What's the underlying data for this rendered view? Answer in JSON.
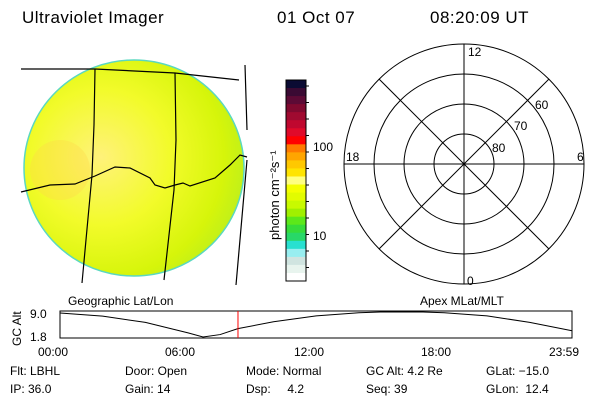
{
  "header": {
    "instrument": "Ultraviolet Imager",
    "date": "01 Oct 07",
    "time": "08:20:09 UT"
  },
  "image_panel": {
    "label": "Geographic Lat/Lon"
  },
  "colorbar": {
    "label": "photon cm⁻²s⁻¹",
    "tick_labels": [
      "100",
      "10"
    ],
    "colors": [
      "#0b0b33",
      "#3a0a33",
      "#5c0a35",
      "#80092f",
      "#a00a30",
      "#c0082f",
      "#e00a2a",
      "#ff0000",
      "#ff7a00",
      "#ffa500",
      "#ffc800",
      "#ffe400",
      "#ffff80",
      "#f4ff00",
      "#e2fc00",
      "#c8fa00",
      "#a0f000",
      "#5ce81a",
      "#36dc3a",
      "#28d868",
      "#28e0d0",
      "#98eef0",
      "#d0e4e0",
      "#e8f4ee",
      "#ffffff"
    ]
  },
  "polar_panel": {
    "label": "Apex MLat/MLT",
    "mlt_labels": [
      "12",
      "6",
      "0",
      "18"
    ],
    "mlat_labels": [
      "60",
      "70",
      "80"
    ]
  },
  "chart_data": {
    "type": "line",
    "ylabel": "GC Alt",
    "y_tick_labels": [
      "9.0",
      "1.8"
    ],
    "ylim": [
      1.8,
      9.0
    ],
    "x_tick_labels": [
      "00:00",
      "06:00",
      "12:00",
      "18:00",
      "23:59"
    ],
    "xlim_hours": [
      0,
      23.98
    ],
    "series": [
      {
        "x_hours": [
          0,
          2,
          4,
          6,
          6.7,
          7.5,
          8.33,
          10,
          12,
          14,
          15,
          16,
          17,
          18,
          20,
          22,
          23.98
        ],
        "values": [
          8.7,
          7.8,
          6.0,
          3.0,
          1.8,
          2.5,
          4.2,
          6.2,
          7.9,
          8.8,
          9.0,
          9.0,
          9.0,
          8.8,
          7.9,
          6.0,
          3.6
        ]
      }
    ],
    "current_time_hours": 8.336,
    "marker_color": "#ff0000"
  },
  "status": {
    "row1": [
      "Flt: LBHL",
      "Door: Open",
      "Mode: Normal",
      "GC Alt: 4.2 Re",
      "GLat: −15.0"
    ],
    "row2": [
      "IP: 36.0",
      "Gain: 14",
      "Dsp:     4.2",
      "Seq: 39",
      "GLon:  12.4"
    ]
  }
}
